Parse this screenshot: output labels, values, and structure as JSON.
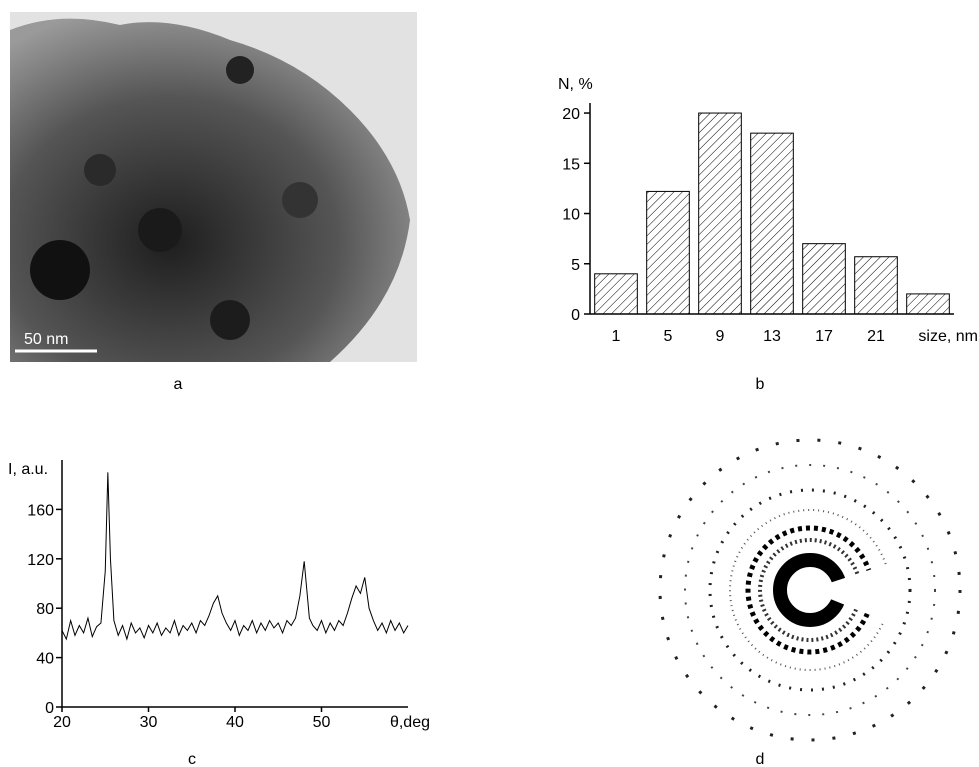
{
  "images": [
    {
      "caption": "a",
      "scale_bar": "50 nm"
    },
    {
      "caption": "d"
    }
  ],
  "chart_data": [
    {
      "type": "bar",
      "caption": "b",
      "ylabel": "N, %",
      "xlabel": "size, nm",
      "categories": [
        "1",
        "5",
        "9",
        "13",
        "17",
        "21",
        null
      ],
      "values": [
        4,
        12.2,
        20,
        18,
        7,
        5.7,
        2
      ],
      "color": "#000000",
      "ylim": [
        0,
        21
      ],
      "yticks": [
        0,
        5,
        10,
        15,
        20
      ]
    },
    {
      "type": "line",
      "caption": "c",
      "ylabel": "I, a.u.",
      "xlabel": "θ,deg",
      "x": [
        20,
        20.5,
        21,
        21.5,
        22,
        22.5,
        23,
        23.5,
        24,
        24.5,
        25,
        25.3,
        25.6,
        26,
        26.5,
        27,
        27.5,
        28,
        28.5,
        29,
        29.5,
        30,
        30.5,
        31,
        31.5,
        32,
        32.5,
        33,
        33.5,
        34,
        34.5,
        35,
        35.5,
        36,
        36.5,
        37,
        37.5,
        38,
        38.5,
        39,
        39.5,
        40,
        40.5,
        41,
        41.5,
        42,
        42.5,
        43,
        43.5,
        44,
        44.5,
        45,
        45.5,
        46,
        46.5,
        47,
        47.5,
        48,
        48.3,
        48.6,
        49,
        49.5,
        50,
        50.5,
        51,
        51.5,
        52,
        52.5,
        53,
        53.5,
        54,
        54.5,
        55,
        55.5,
        56,
        56.5,
        57,
        57.5,
        58,
        58.5,
        59,
        59.5,
        60
      ],
      "values": [
        62,
        55,
        70,
        58,
        66,
        60,
        72,
        57,
        65,
        68,
        110,
        190,
        120,
        70,
        58,
        66,
        55,
        68,
        60,
        64,
        56,
        66,
        60,
        68,
        58,
        64,
        60,
        70,
        58,
        66,
        62,
        68,
        60,
        70,
        66,
        74,
        84,
        90,
        76,
        68,
        62,
        70,
        58,
        66,
        62,
        70,
        60,
        68,
        62,
        70,
        64,
        68,
        60,
        70,
        66,
        72,
        90,
        118,
        95,
        72,
        66,
        62,
        70,
        60,
        68,
        62,
        70,
        66,
        76,
        88,
        98,
        92,
        105,
        80,
        70,
        62,
        68,
        60,
        70,
        62,
        68,
        60,
        66
      ],
      "color": "#000000",
      "xlim": [
        20,
        60
      ],
      "xticks": [
        20,
        30,
        40,
        50
      ],
      "ylim": [
        0,
        200
      ],
      "yticks": [
        0,
        40,
        80,
        120,
        160
      ]
    }
  ]
}
